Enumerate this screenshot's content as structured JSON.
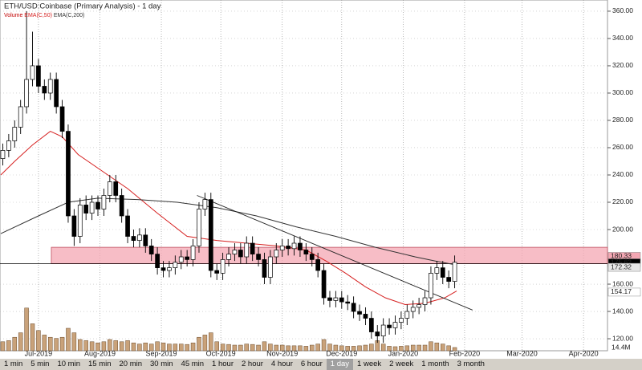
{
  "chart_data": {
    "type": "candlestick",
    "title": "ETH/USD:Coinbase (Primary Analysis) - 1 day",
    "x": [
      -18,
      -15,
      -12,
      -9,
      -6,
      -3,
      0,
      3,
      6,
      9,
      12,
      15,
      18,
      21,
      24,
      27,
      30,
      33,
      36,
      39,
      42,
      45,
      48,
      51,
      54,
      57,
      60,
      63,
      66,
      69,
      72,
      75,
      78,
      81,
      84,
      87,
      90,
      93,
      96,
      99,
      102,
      105,
      108,
      111,
      114,
      117,
      120,
      123,
      126,
      129,
      132,
      135,
      138,
      141,
      144,
      147,
      150,
      153,
      156,
      159,
      162,
      165,
      168,
      171,
      174,
      177,
      180,
      183,
      186,
      189,
      192,
      195,
      198,
      201,
      204,
      207,
      210
    ],
    "open": [
      252,
      258,
      265,
      275,
      290,
      310,
      320,
      305,
      300,
      310,
      290,
      272,
      210,
      195,
      218,
      212,
      220,
      215,
      225,
      235,
      225,
      210,
      195,
      192,
      196,
      188,
      182,
      172,
      170,
      172,
      176,
      180,
      178,
      188,
      215,
      222,
      170,
      168,
      178,
      182,
      185,
      180,
      190,
      182,
      178,
      165,
      180,
      185,
      188,
      186,
      190,
      185,
      182,
      178,
      170,
      150,
      148,
      150,
      147,
      146,
      140,
      138,
      135,
      125,
      122,
      130,
      128,
      132,
      135,
      140,
      143,
      145,
      150,
      168,
      172,
      165,
      162
    ],
    "high": [
      263,
      270,
      280,
      295,
      360,
      345,
      325,
      310,
      315,
      315,
      295,
      277,
      215,
      223,
      225,
      225,
      225,
      230,
      240,
      240,
      230,
      215,
      200,
      201,
      201,
      193,
      187,
      177,
      177,
      181,
      185,
      185,
      193,
      220,
      227,
      227,
      175,
      183,
      187,
      190,
      190,
      195,
      195,
      187,
      183,
      185,
      190,
      193,
      193,
      195,
      195,
      190,
      187,
      183,
      175,
      155,
      155,
      155,
      152,
      151,
      145,
      143,
      140,
      130,
      135,
      135,
      137,
      140,
      145,
      148,
      150,
      155,
      173,
      177,
      177,
      170,
      181
    ],
    "low": [
      247,
      253,
      260,
      270,
      285,
      305,
      300,
      295,
      295,
      285,
      267,
      205,
      188,
      190,
      207,
      207,
      210,
      210,
      220,
      220,
      205,
      190,
      187,
      187,
      183,
      177,
      167,
      165,
      165,
      167,
      171,
      173,
      173,
      183,
      210,
      165,
      163,
      163,
      173,
      177,
      175,
      175,
      177,
      173,
      160,
      160,
      175,
      180,
      181,
      181,
      180,
      177,
      173,
      165,
      145,
      143,
      143,
      142,
      141,
      135,
      133,
      130,
      120,
      117,
      117,
      123,
      123,
      127,
      130,
      135,
      138,
      140,
      145,
      163,
      160,
      157,
      157
    ],
    "close": [
      258,
      265,
      275,
      290,
      310,
      320,
      305,
      300,
      310,
      290,
      272,
      210,
      195,
      218,
      212,
      220,
      215,
      225,
      235,
      225,
      210,
      195,
      192,
      196,
      188,
      182,
      172,
      170,
      172,
      176,
      180,
      178,
      188,
      215,
      222,
      170,
      168,
      178,
      182,
      185,
      180,
      190,
      182,
      178,
      165,
      180,
      185,
      188,
      186,
      190,
      185,
      182,
      178,
      170,
      150,
      148,
      150,
      147,
      146,
      140,
      138,
      135,
      125,
      122,
      130,
      128,
      132,
      135,
      140,
      143,
      145,
      150,
      168,
      172,
      165,
      162,
      176
    ],
    "volume": {
      "name": "Volume",
      "color": "#c9a27a",
      "label": "14.4M",
      "ylim": [
        0,
        200
      ],
      "values": [
        40,
        45,
        60,
        80,
        190,
        120,
        90,
        70,
        60,
        55,
        60,
        100,
        80,
        50,
        45,
        40,
        35,
        40,
        50,
        45,
        40,
        45,
        35,
        30,
        35,
        30,
        40,
        35,
        30,
        30,
        30,
        28,
        35,
        60,
        70,
        80,
        40,
        30,
        28,
        25,
        25,
        30,
        28,
        25,
        40,
        30,
        25,
        25,
        22,
        22,
        22,
        20,
        25,
        30,
        50,
        30,
        25,
        22,
        20,
        20,
        22,
        25,
        30,
        45,
        30,
        20,
        18,
        20,
        22,
        25,
        25,
        25,
        40,
        35,
        30,
        22,
        14.4
      ]
    },
    "series": [
      {
        "name": "EMA(C,50)",
        "color": "#d62020",
        "x": [
          -19,
          -12,
          -3,
          6,
          12,
          20,
          32,
          45,
          60,
          75,
          90,
          105,
          120,
          135,
          145,
          155,
          165,
          175,
          185,
          195,
          205,
          211
        ],
        "values": [
          240,
          250,
          262,
          272,
          268,
          255,
          243,
          230,
          212,
          195,
          192,
          190,
          188,
          185,
          177,
          168,
          158,
          150,
          145,
          146,
          150,
          155
        ]
      },
      {
        "name": "EMA(C,200)",
        "color": "#333333",
        "x": [
          -19,
          0,
          15,
          30,
          50,
          70,
          90,
          110,
          130,
          150,
          170,
          190,
          200,
          211
        ],
        "values": [
          197,
          210,
          220,
          223,
          222,
          220,
          216,
          210,
          202,
          195,
          187,
          180,
          177,
          174
        ]
      }
    ],
    "zone": {
      "x": [
        6.5,
        287.1
      ],
      "y": [
        175,
        187
      ],
      "color": "#f4a7b3"
    },
    "trendline": {
      "x": [
        80,
        219
      ],
      "y": [
        225,
        141
      ]
    },
    "price_tags": [
      {
        "value": 180.33,
        "color": "#f4a7b3"
      },
      {
        "value": 175.62,
        "color": "#000000"
      },
      {
        "value": 172.32,
        "color": "#e8e8e8"
      },
      {
        "value": 154.17,
        "color": "#ffffff"
      }
    ],
    "xlim": [
      -19.4,
      287.1
    ],
    "ylim": [
      111.2,
      368.2
    ],
    "xticks": [
      {
        "value": 0,
        "label": "Jul-2019"
      },
      {
        "value": 31,
        "label": "Aug-2019"
      },
      {
        "value": 62,
        "label": "Sep-2019"
      },
      {
        "value": 92,
        "label": "Oct-2019"
      },
      {
        "value": 123,
        "label": "Nov-2019"
      },
      {
        "value": 153,
        "label": "Dec-2019"
      },
      {
        "value": 184,
        "label": "Jan-2020"
      },
      {
        "value": 215,
        "label": "Feb-2020"
      },
      {
        "value": 244,
        "label": "Mar-2020"
      },
      {
        "value": 275,
        "label": "Apr-2020"
      }
    ],
    "yticks": [
      {
        "value": 120,
        "label": "120.00"
      },
      {
        "value": 140,
        "label": "140.00"
      },
      {
        "value": 160,
        "label": "160.00"
      },
      {
        "value": 200,
        "label": "200.00"
      },
      {
        "value": 220,
        "label": "220.00"
      },
      {
        "value": 240,
        "label": "240.00"
      },
      {
        "value": 260,
        "label": "260.00"
      },
      {
        "value": 280,
        "label": "280.00"
      },
      {
        "value": 300,
        "label": "300.00"
      },
      {
        "value": 320,
        "label": "320.00"
      },
      {
        "value": 340,
        "label": "340.00"
      },
      {
        "value": 360,
        "label": "360.00"
      }
    ],
    "grid": true
  },
  "toolbar": {
    "buttons": [
      "1 min",
      "5 min",
      "10 min",
      "15 min",
      "20 min",
      "30 min",
      "45 min",
      "1 hour",
      "2 hour",
      "4 hour",
      "6 hour",
      "1 day",
      "1 week",
      "2 week",
      "1 month",
      "3 month"
    ],
    "selected": 11
  }
}
